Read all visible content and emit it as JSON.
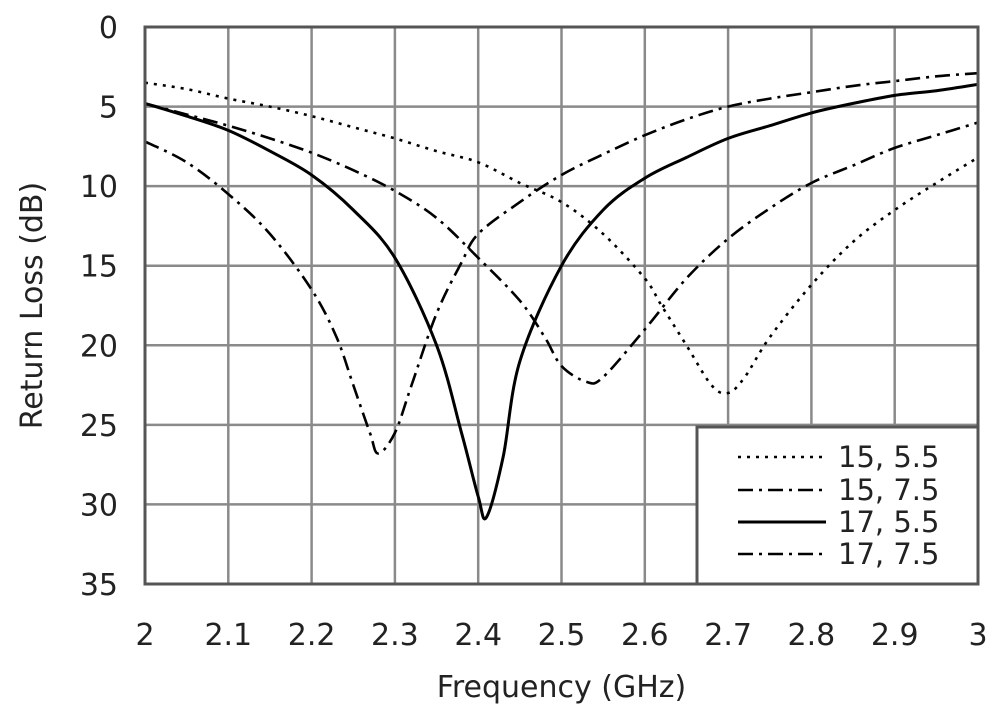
{
  "chart_data": {
    "type": "line",
    "xlabel": "Frequency (GHz)",
    "ylabel": "Return Loss (dB)",
    "xlim": [
      2,
      3
    ],
    "ylim": [
      0,
      35
    ],
    "y_inverted": true,
    "grid": true,
    "legend_position": "bottom-right",
    "x_ticks": [
      "2",
      "2.1",
      "2.2",
      "2.3",
      "2.4",
      "2.5",
      "2.6",
      "2.7",
      "2.8",
      "2.9",
      "3"
    ],
    "y_ticks": [
      "0",
      "5",
      "10",
      "15",
      "20",
      "25",
      "30",
      "35"
    ],
    "series": [
      {
        "name": "15, 5.5",
        "style": "dotted",
        "color": "#000000",
        "x": [
          2.0,
          2.05,
          2.1,
          2.15,
          2.2,
          2.25,
          2.3,
          2.35,
          2.4,
          2.45,
          2.5,
          2.55,
          2.6,
          2.62,
          2.65,
          2.68,
          2.7,
          2.72,
          2.75,
          2.8,
          2.85,
          2.9,
          2.95,
          3.0
        ],
        "y": [
          3.5,
          3.9,
          4.5,
          5.0,
          5.6,
          6.3,
          7.0,
          7.8,
          8.5,
          9.8,
          11.0,
          13.0,
          15.8,
          17.5,
          20.0,
          22.5,
          23.0,
          22.0,
          19.5,
          16.2,
          13.5,
          11.5,
          9.8,
          8.2
        ]
      },
      {
        "name": "15, 7.5",
        "style": "dash-dot",
        "color": "#000000",
        "x": [
          2.0,
          2.05,
          2.1,
          2.15,
          2.2,
          2.25,
          2.3,
          2.35,
          2.4,
          2.45,
          2.48,
          2.5,
          2.53,
          2.55,
          2.6,
          2.65,
          2.7,
          2.75,
          2.8,
          2.85,
          2.9,
          2.95,
          3.0
        ],
        "y": [
          4.8,
          5.5,
          6.2,
          7.0,
          7.9,
          9.0,
          10.3,
          12.0,
          14.5,
          17.2,
          19.5,
          21.3,
          22.3,
          22.0,
          19.0,
          15.8,
          13.3,
          11.4,
          9.8,
          8.7,
          7.6,
          6.8,
          6.0
        ]
      },
      {
        "name": "17, 5.5",
        "style": "solid",
        "color": "#000000",
        "x": [
          2.0,
          2.05,
          2.1,
          2.15,
          2.2,
          2.25,
          2.3,
          2.35,
          2.38,
          2.4,
          2.41,
          2.43,
          2.45,
          2.5,
          2.55,
          2.6,
          2.65,
          2.7,
          2.75,
          2.8,
          2.85,
          2.9,
          2.95,
          3.0
        ],
        "y": [
          4.8,
          5.6,
          6.5,
          7.8,
          9.3,
          11.5,
          14.5,
          20.0,
          25.5,
          29.5,
          30.8,
          27.0,
          21.0,
          15.0,
          11.5,
          9.5,
          8.2,
          7.0,
          6.2,
          5.4,
          4.8,
          4.3,
          4.0,
          3.6
        ]
      },
      {
        "name": "17, 7.5",
        "style": "dash-dot",
        "color": "#000000",
        "x": [
          2.0,
          2.05,
          2.1,
          2.15,
          2.2,
          2.23,
          2.25,
          2.27,
          2.28,
          2.3,
          2.32,
          2.35,
          2.38,
          2.4,
          2.45,
          2.5,
          2.55,
          2.6,
          2.65,
          2.7,
          2.75,
          2.8,
          2.85,
          2.9,
          2.95,
          3.0
        ],
        "y": [
          7.2,
          8.5,
          10.5,
          13.0,
          16.5,
          19.5,
          22.5,
          25.5,
          26.8,
          25.5,
          22.5,
          18.0,
          14.8,
          13.0,
          11.0,
          9.3,
          8.0,
          6.8,
          5.8,
          5.0,
          4.5,
          4.1,
          3.7,
          3.4,
          3.1,
          2.9
        ]
      }
    ]
  }
}
